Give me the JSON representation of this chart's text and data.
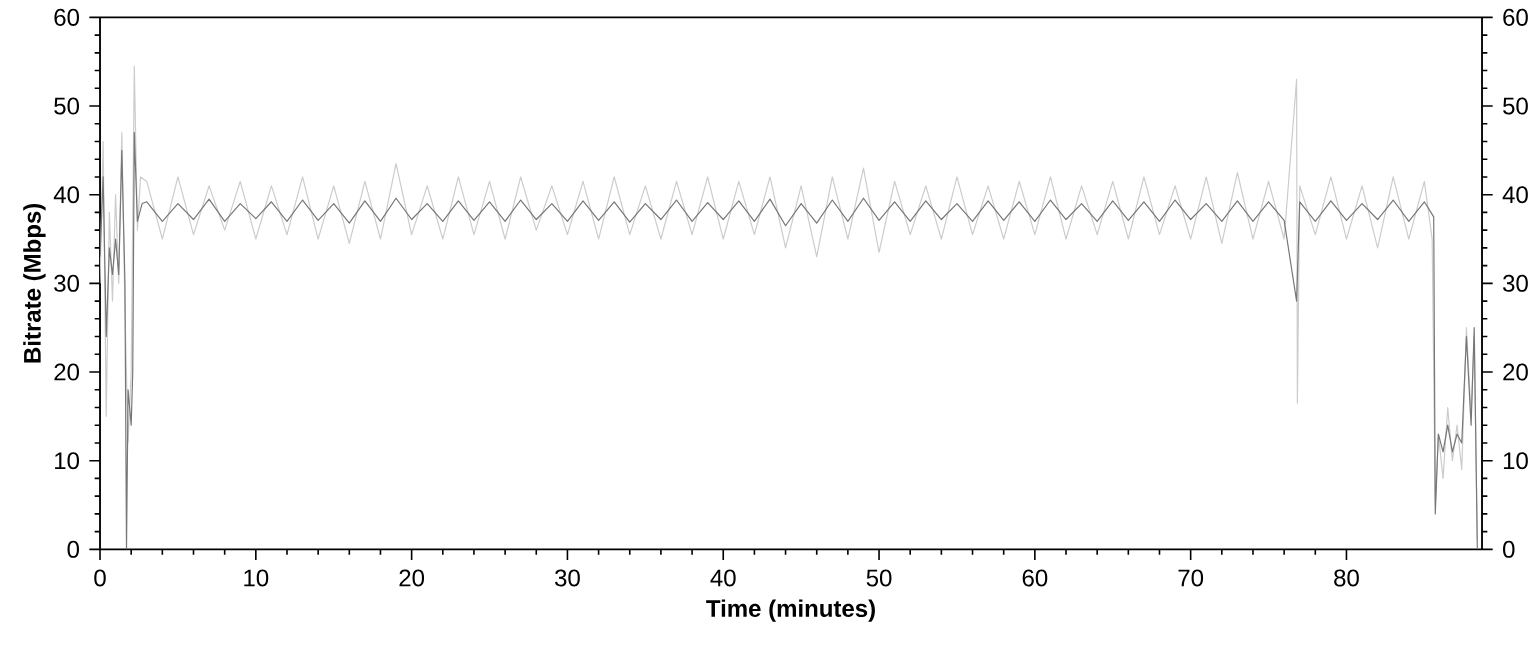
{
  "chart_data": {
    "type": "line",
    "xlabel": "Time (minutes)",
    "ylabel": "Bitrate (Mbps)",
    "xlim": [
      0,
      88.7
    ],
    "xticks": [
      0,
      10,
      20,
      30,
      40,
      50,
      60,
      70,
      80
    ],
    "ylim": [
      0,
      60
    ],
    "yticks": [
      0,
      10,
      20,
      30,
      40,
      50,
      60
    ],
    "y2lim": [
      0,
      60
    ],
    "y2ticks": [
      0,
      10,
      20,
      30,
      40,
      50,
      60
    ],
    "grid": false,
    "marker": "none",
    "line_style": "solid",
    "series": [
      {
        "color": "#cccccc",
        "x": [
          0,
          0.2,
          0.4,
          0.6,
          0.8,
          1.0,
          1.2,
          1.4,
          1.6,
          1.8,
          2.0,
          2.2,
          2.4,
          2.6,
          3,
          4,
          5,
          6,
          7,
          8,
          9,
          10,
          11,
          12,
          13,
          14,
          15,
          16,
          17,
          18,
          19,
          20,
          21,
          22,
          23,
          24,
          25,
          26,
          27,
          28,
          29,
          30,
          31,
          32,
          33,
          34,
          35,
          36,
          37,
          38,
          39,
          40,
          41,
          42,
          43,
          44,
          45,
          46,
          47,
          48,
          49,
          50,
          51,
          52,
          53,
          54,
          55,
          56,
          57,
          58,
          59,
          60,
          61,
          62,
          63,
          64,
          65,
          66,
          67,
          68,
          69,
          70,
          71,
          72,
          73,
          74,
          75,
          76,
          76.8,
          76.85,
          77,
          78,
          79,
          80,
          81,
          82,
          83,
          84,
          85,
          85.5,
          85.7,
          85.9,
          86.2,
          86.5,
          86.8,
          87.1,
          87.4,
          87.7,
          88.0,
          88.2,
          88.4
        ],
        "values": [
          30,
          46,
          15,
          38,
          28,
          40,
          30,
          47,
          27,
          12,
          20,
          54.5,
          36,
          42,
          41.5,
          35,
          42,
          35.5,
          41,
          36,
          41.5,
          35,
          41,
          35.5,
          42,
          35,
          41,
          34.5,
          41.5,
          35,
          43.5,
          35.5,
          41,
          35,
          42,
          35.5,
          41.5,
          35,
          42,
          36,
          41,
          35.5,
          41.5,
          35,
          42,
          35.5,
          41,
          35,
          41.5,
          35.5,
          42,
          35,
          41.5,
          35.5,
          42,
          34,
          41,
          33,
          42,
          35,
          43,
          33.5,
          41.5,
          35.5,
          41,
          35,
          42,
          35.5,
          41,
          35,
          41.5,
          35.5,
          42,
          35,
          41,
          35.5,
          41.5,
          35,
          42,
          35.5,
          41,
          35,
          42,
          34.5,
          42.5,
          35,
          41.5,
          35,
          53,
          16.5,
          41,
          35.5,
          42,
          35,
          41,
          34,
          42,
          35,
          41.5,
          35,
          5,
          13,
          8,
          16,
          10,
          14,
          9,
          25,
          15,
          24,
          1
        ]
      },
      {
        "color": "#777777",
        "x": [
          0,
          0.2,
          0.4,
          0.6,
          0.8,
          1.0,
          1.2,
          1.4,
          1.6,
          1.7,
          1.8,
          2.0,
          2.1,
          2.2,
          2.4,
          2.7,
          3,
          4,
          5,
          6,
          7,
          8,
          9,
          10,
          11,
          12,
          13,
          14,
          15,
          16,
          17,
          18,
          19,
          20,
          21,
          22,
          23,
          24,
          25,
          26,
          27,
          28,
          29,
          30,
          31,
          32,
          33,
          34,
          35,
          36,
          37,
          38,
          39,
          40,
          41,
          42,
          43,
          44,
          45,
          46,
          47,
          48,
          49,
          50,
          51,
          52,
          53,
          54,
          55,
          56,
          57,
          58,
          59,
          60,
          61,
          62,
          63,
          64,
          65,
          66,
          67,
          68,
          69,
          70,
          71,
          72,
          73,
          74,
          75,
          76,
          76.8,
          77,
          78,
          79,
          80,
          81,
          82,
          83,
          84,
          85,
          85.6,
          85.7,
          85.9,
          86.2,
          86.5,
          86.8,
          87.1,
          87.4,
          87.7,
          88.0,
          88.2,
          88.4
        ],
        "values": [
          33,
          42,
          24,
          34,
          31,
          35,
          31,
          45,
          30,
          0,
          18,
          14,
          20,
          47,
          37,
          39,
          39.2,
          37,
          39,
          37.2,
          39.5,
          37,
          39,
          37.3,
          39.2,
          37,
          39.4,
          37.1,
          39,
          36.8,
          39.3,
          37,
          39.6,
          37.2,
          39,
          37,
          39.3,
          37.1,
          39.2,
          37,
          39.4,
          37.2,
          39,
          37,
          39.3,
          37.1,
          39.2,
          36.9,
          39,
          37.2,
          39.4,
          37,
          39.1,
          37.2,
          39.3,
          37,
          39.5,
          36.5,
          39,
          36.8,
          39.4,
          37,
          39.6,
          37.1,
          39.2,
          37,
          39.3,
          37.2,
          39,
          37,
          39.3,
          37.1,
          39.2,
          37,
          39.4,
          37.2,
          39,
          37,
          39.3,
          37.1,
          39.2,
          37,
          39.4,
          37.2,
          39,
          37,
          39.3,
          37,
          39.2,
          37.1,
          28,
          39.2,
          37,
          39.3,
          37.1,
          39,
          37.2,
          39.4,
          37,
          39.2,
          37.5,
          4,
          13,
          11,
          14,
          11,
          13,
          12,
          24,
          14,
          25,
          0
        ]
      }
    ]
  }
}
